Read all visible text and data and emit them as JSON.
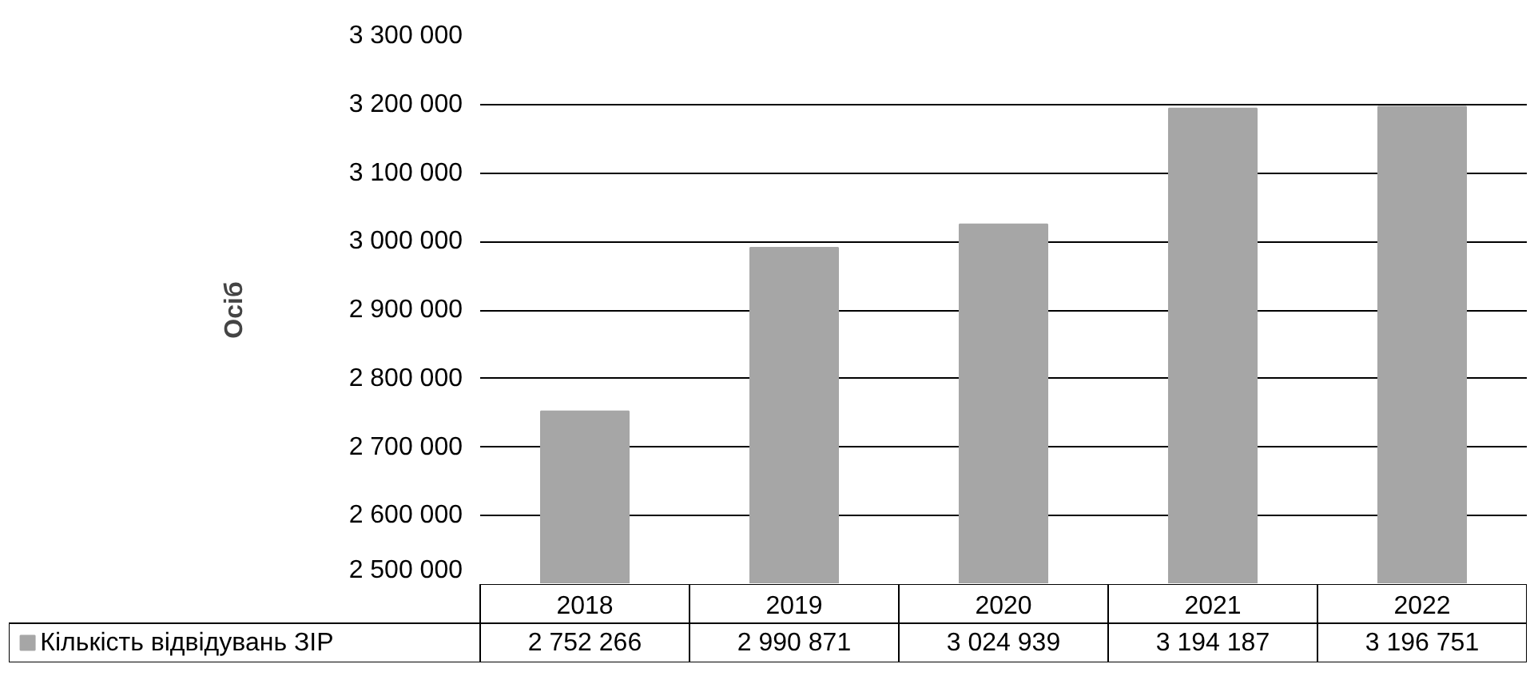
{
  "chart_data": {
    "type": "bar",
    "ylabel": "Осіб",
    "categories": [
      "2018",
      "2019",
      "2020",
      "2021",
      "2022"
    ],
    "series": [
      {
        "name": "Кількість відвідувань ЗІР",
        "color": "#a6a6a6",
        "values": [
          2752266,
          2990871,
          3024939,
          3194187,
          3196751
        ],
        "value_labels": [
          "2 752 266",
          "2 990 871",
          "3 024 939",
          "3 194 187",
          "3 196 751"
        ]
      }
    ],
    "ylim": [
      2500000,
      3300000
    ],
    "yticks": [
      {
        "value": 2500000,
        "label": "2 500 000"
      },
      {
        "value": 2600000,
        "label": "2 600 000"
      },
      {
        "value": 2700000,
        "label": "2 700 000"
      },
      {
        "value": 2800000,
        "label": "2 800 000"
      },
      {
        "value": 2900000,
        "label": "2 900 000"
      },
      {
        "value": 3000000,
        "label": "3 000 000"
      },
      {
        "value": 3100000,
        "label": "3 100 000"
      },
      {
        "value": 3200000,
        "label": "3 200 000"
      },
      {
        "value": 3300000,
        "label": "3 300 000"
      }
    ],
    "grid": "y",
    "legend": "bottom"
  }
}
